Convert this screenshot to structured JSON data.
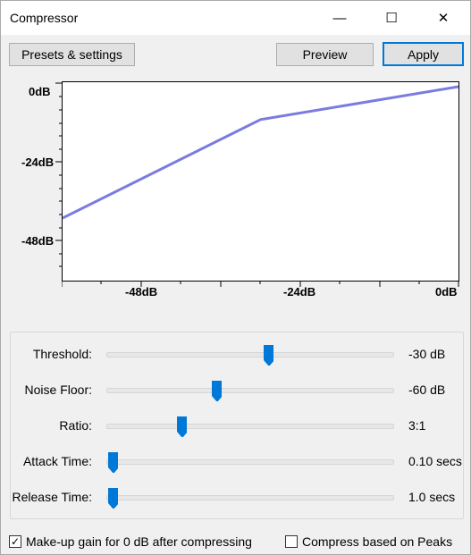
{
  "window": {
    "title": "Compressor"
  },
  "window_controls": {
    "minimize": "—",
    "maximize": "☐",
    "close": "✕"
  },
  "toolbar": {
    "presets_label": "Presets & settings",
    "preview_label": "Preview",
    "apply_label": "Apply"
  },
  "graph": {
    "y_ticks": [
      "0dB",
      "-24dB",
      "-48dB"
    ],
    "x_ticks": [
      "-48dB",
      "-24dB",
      "0dB"
    ],
    "line_color": "#7b7be0",
    "threshold_db": -30,
    "ratio": 3,
    "range_db": [
      -60,
      0
    ]
  },
  "controls": [
    {
      "label": "Threshold:",
      "value": "-30 dB",
      "level": 0.54
    },
    {
      "label": "Noise Floor:",
      "value": "-60 dB",
      "level": 0.36
    },
    {
      "label": "Ratio:",
      "value": "3:1",
      "level": 0.24
    },
    {
      "label": "Attack Time:",
      "value": "0.10 secs",
      "level": 0.0
    },
    {
      "label": "Release Time:",
      "value": "1.0 secs",
      "level": 0.0
    }
  ],
  "options": {
    "makeup_label": "Make-up gain for 0 dB after compressing",
    "makeup_checked": true,
    "peaks_label": "Compress based on Peaks",
    "peaks_checked": false
  },
  "colors": {
    "accent": "#0078d7",
    "thumb": "#0078d7"
  }
}
